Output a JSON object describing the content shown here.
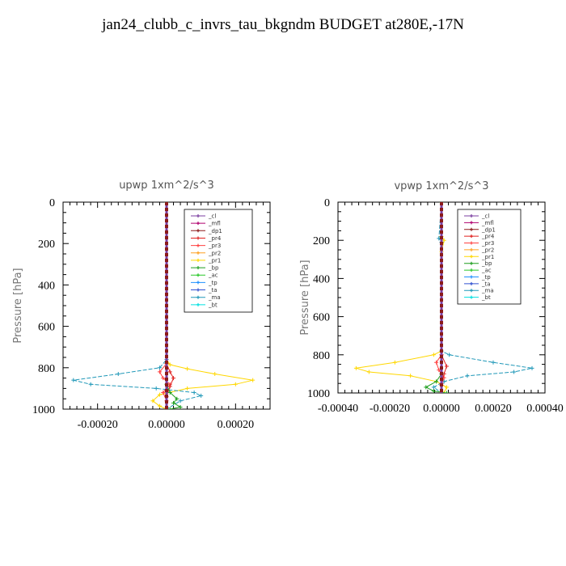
{
  "title": "jan24_clubb_c_invrs_tau_bkgndm  BUDGET at280E,-17N",
  "legend_colors": {
    "_cl": "#7b3fa0",
    "_mfl": "#b0006e",
    "_dp1": "#8b1a1a",
    "_pr4": "#e0201e",
    "_pr3": "#ff4040",
    "_pr2": "#ffa020",
    "_pr1": "#ffd700",
    "_bp": "#1e9e1e",
    "_ac": "#28c828",
    "_tp": "#1e90ff",
    "_ta": "#3050d0",
    "_ma": "#2098b8",
    "_bt": "#00e0e0"
  },
  "chart_data": [
    {
      "type": "line",
      "title": "upwp   1xm^2/s^3",
      "ylabel": "Pressure [hPa]",
      "xlabel": "",
      "xlim": [
        -0.0003,
        0.0003
      ],
      "ylim": [
        1000,
        0
      ],
      "x_ticks": [
        "-0.00020",
        "0.00000",
        "0.00020"
      ],
      "y_ticks": [
        "0",
        "200",
        "400",
        "600",
        "800",
        "1000"
      ],
      "legend": [
        "_cl",
        "_mfl",
        "_dp1",
        "_pr4",
        "_pr3",
        "_pr2",
        "_pr1",
        "_bp",
        "_ac",
        "_tp",
        "_ta",
        "_ma",
        "_bt"
      ],
      "series": [
        {
          "name": "_pr1",
          "color": "#ffd700",
          "x": [
            0,
            0,
            1e-05,
            6e-05,
            0.00014,
            0.00025,
            0.0002,
            6e-05,
            -2e-05,
            -4e-05,
            -2e-05,
            0
          ],
          "y": [
            0,
            760,
            785,
            805,
            830,
            860,
            880,
            900,
            930,
            960,
            985,
            1000
          ]
        },
        {
          "name": "_ma",
          "color": "#2098b8",
          "x": [
            0,
            0,
            -2e-05,
            -0.00014,
            -0.00027,
            -0.00022,
            -3e-05,
            8e-05,
            0.0001,
            4e-05,
            0
          ],
          "y": [
            0,
            760,
            800,
            830,
            860,
            880,
            900,
            920,
            935,
            960,
            1000
          ]
        },
        {
          "name": "_pr3",
          "color": "#ff4040",
          "x": [
            0,
            0,
            -2e-05,
            -1e-05,
            1e-05,
            -1e-05,
            0,
            0
          ],
          "y": [
            0,
            780,
            820,
            850,
            880,
            920,
            960,
            1000
          ]
        },
        {
          "name": "_pr4",
          "color": "#e0201e",
          "x": [
            0,
            0,
            1e-05,
            2e-05,
            1e-05,
            0,
            0
          ],
          "y": [
            0,
            780,
            820,
            850,
            890,
            940,
            1000
          ]
        },
        {
          "name": "_bp",
          "color": "#1e9e1e",
          "x": [
            0,
            0,
            1e-05,
            3e-05,
            2e-05,
            4e-05,
            1e-05
          ],
          "y": [
            0,
            880,
            920,
            950,
            970,
            990,
            1000
          ]
        },
        {
          "name": "_mfl",
          "color": "#b0006e",
          "x": [
            0,
            0
          ],
          "y": [
            0,
            1000
          ]
        },
        {
          "name": "_cl",
          "color": "#7b3fa0",
          "x": [
            0,
            0
          ],
          "y": [
            0,
            1000
          ]
        }
      ]
    },
    {
      "type": "line",
      "title": "vpwp   1xm^2/s^3",
      "ylabel": "Pressure [hPa]",
      "xlabel": "",
      "xlim": [
        -0.0004,
        0.0004
      ],
      "ylim": [
        1000,
        0
      ],
      "x_ticks": [
        "-0.00040",
        "-0.00020",
        "0.00000",
        "0.00020",
        "0.00040"
      ],
      "y_ticks": [
        "0",
        "200",
        "400",
        "600",
        "800",
        "1000"
      ],
      "legend": [
        "_cl",
        "_mfl",
        "_dp1",
        "_pr4",
        "_pr3",
        "_pr2",
        "_pr1",
        "_bp",
        "_ac",
        "_tp",
        "_ta",
        "_ma",
        "_bt"
      ],
      "series": [
        {
          "name": "_pr1",
          "color": "#ffd700",
          "x": [
            0,
            0,
            1e-05,
            0,
            0,
            -3e-05,
            -0.00018,
            -0.00033,
            -0.00028,
            -0.00012,
            -2e-05,
            2e-05,
            1e-05
          ],
          "y": [
            0,
            180,
            200,
            260,
            780,
            800,
            840,
            870,
            890,
            910,
            940,
            970,
            1000
          ]
        },
        {
          "name": "_ma",
          "color": "#2098b8",
          "x": [
            0,
            -1e-05,
            0,
            0,
            3e-05,
            0.0002,
            0.00035,
            0.00028,
            0.0001,
            1e-05,
            -3e-05,
            0
          ],
          "y": [
            0,
            190,
            210,
            780,
            800,
            840,
            870,
            890,
            910,
            940,
            970,
            1000
          ]
        },
        {
          "name": "_pr3",
          "color": "#ff4040",
          "x": [
            0,
            0,
            -2e-05,
            -1e-05,
            1e-05,
            0,
            0
          ],
          "y": [
            0,
            800,
            840,
            880,
            920,
            960,
            1000
          ]
        },
        {
          "name": "_pr4",
          "color": "#e0201e",
          "x": [
            0,
            0,
            2e-05,
            1e-05,
            0,
            0
          ],
          "y": [
            0,
            800,
            860,
            900,
            950,
            1000
          ]
        },
        {
          "name": "_bp",
          "color": "#1e9e1e",
          "x": [
            0,
            0,
            -2e-05,
            -6e-05,
            -3e-05,
            2e-05
          ],
          "y": [
            0,
            900,
            940,
            970,
            990,
            1000
          ]
        },
        {
          "name": "_mfl",
          "color": "#b0006e",
          "x": [
            0,
            0
          ],
          "y": [
            0,
            1000
          ]
        },
        {
          "name": "_cl",
          "color": "#7b3fa0",
          "x": [
            0,
            0
          ],
          "y": [
            0,
            1000
          ]
        }
      ]
    }
  ]
}
